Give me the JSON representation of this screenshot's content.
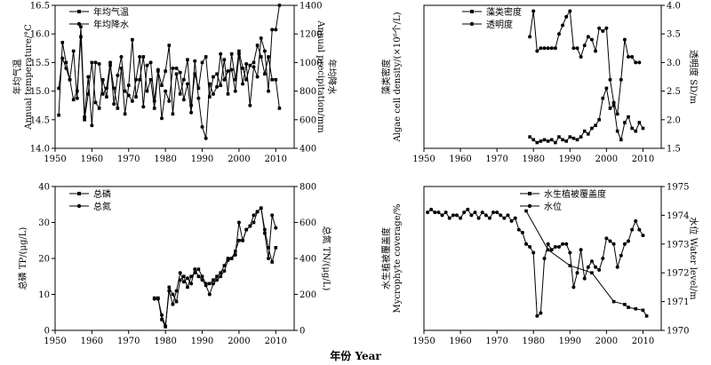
{
  "figure": {
    "xlabel": "年份 Year"
  },
  "chart_data": [
    {
      "type": "line",
      "xlim": [
        1950,
        2015
      ],
      "xticks": [
        1950,
        1960,
        1970,
        1980,
        1990,
        2000,
        2010
      ],
      "ylabel_left": "年均气温\nAnnual temperature/°C",
      "ylabel_right": "年均降水\nAnnual precipitation/mm",
      "ylim_left": [
        14.0,
        16.5
      ],
      "yticks_left": [
        "14.0",
        "14.5",
        "15.0",
        "15.5",
        "16.0",
        "16.5"
      ],
      "ylim_right": [
        400,
        1400
      ],
      "yticks_right": [
        "400",
        "600",
        "800",
        "1000",
        "1200",
        "1400"
      ],
      "legend_position": "top-left",
      "series": [
        {
          "name": "年均气温",
          "axis": "left",
          "marker": "square",
          "x": [
            1951,
            1952,
            1953,
            1954,
            1955,
            1956,
            1957,
            1958,
            1959,
            1960,
            1961,
            1962,
            1963,
            1964,
            1965,
            1966,
            1967,
            1968,
            1969,
            1970,
            1971,
            1972,
            1973,
            1974,
            1975,
            1976,
            1977,
            1978,
            1979,
            1980,
            1981,
            1982,
            1983,
            1984,
            1985,
            1986,
            1987,
            1988,
            1989,
            1990,
            1991,
            1992,
            1993,
            1994,
            1995,
            1996,
            1997,
            1998,
            1999,
            2000,
            2001,
            2002,
            2003,
            2004,
            2005,
            2006,
            2007,
            2008,
            2009,
            2010,
            2011
          ],
          "values": [
            14.58,
            15.85,
            15.5,
            15.2,
            14.85,
            15.0,
            15.95,
            14.5,
            14.95,
            15.5,
            14.8,
            14.7,
            15.2,
            14.9,
            15.45,
            15.05,
            14.7,
            15.4,
            14.6,
            15.1,
            15.9,
            14.9,
            15.2,
            15.6,
            15.0,
            15.2,
            14.7,
            15.35,
            15.1,
            15.35,
            15.8,
            14.6,
            15.3,
            14.95,
            15.2,
            15.55,
            14.75,
            15.3,
            15.05,
            15.5,
            15.6,
            14.9,
            15.25,
            15.3,
            15.1,
            15.55,
            14.95,
            15.65,
            15.2,
            15.7,
            15.4,
            15.2,
            15.45,
            15.5,
            15.8,
            15.6,
            15.3,
            15.6,
            15.2,
            15.2,
            14.7
          ]
        },
        {
          "name": "年均降水",
          "axis": "right",
          "marker": "circle",
          "x": [
            1951,
            1952,
            1953,
            1954,
            1955,
            1956,
            1957,
            1958,
            1959,
            1960,
            1961,
            1962,
            1963,
            1964,
            1965,
            1966,
            1967,
            1968,
            1969,
            1970,
            1971,
            1972,
            1973,
            1974,
            1975,
            1976,
            1977,
            1978,
            1979,
            1980,
            1981,
            1982,
            1983,
            1984,
            1985,
            1986,
            1987,
            1988,
            1989,
            1990,
            1991,
            1992,
            1993,
            1994,
            1995,
            1996,
            1997,
            1998,
            1999,
            2000,
            2001,
            2002,
            2003,
            2004,
            2005,
            2006,
            2007,
            2008,
            2009,
            2010,
            2011
          ],
          "values": [
            820,
            1030,
            960,
            880,
            1080,
            750,
            1250,
            620,
            900,
            560,
            1000,
            990,
            780,
            820,
            1000,
            710,
            910,
            1040,
            800,
            770,
            730,
            880,
            1040,
            690,
            980,
            1000,
            730,
            950,
            610,
            800,
            730,
            960,
            960,
            930,
            740,
            850,
            650,
            1010,
            750,
            550,
            470,
            850,
            780,
            830,
            1060,
            880,
            940,
            950,
            800,
            1060,
            850,
            990,
            700,
            970,
            900,
            1170,
            1080,
            800,
            1230,
            1230,
            1400
          ]
        }
      ]
    },
    {
      "type": "line",
      "xlim": [
        1950,
        2015
      ],
      "xticks": [
        1950,
        1960,
        1970,
        1980,
        1990,
        2000,
        2010
      ],
      "ylabel_left": "藻类密度\nAlgae cell density/(×10⁶个/L)",
      "ylabel_right": "透明度 SD/m",
      "ylim_left": [
        0,
        100
      ],
      "yticks_left": [],
      "ylim_right": [
        1.5,
        4.0
      ],
      "yticks_right": [
        "1.5",
        "2.0",
        "2.5",
        "3.0",
        "3.5",
        "4.0"
      ],
      "legend_position": "top-center",
      "series": [
        {
          "name": "藻类密度",
          "axis": "left",
          "marker": "square",
          "x": [
            1979,
            1980,
            1981,
            1982,
            1983,
            1984,
            1985,
            1986,
            1987,
            1988,
            1989,
            1990,
            1991,
            1992,
            1993,
            1994,
            1995,
            1996,
            1997,
            1998,
            1999,
            2000,
            2001,
            2002,
            2003,
            2004,
            2005,
            2006,
            2007,
            2008,
            2009,
            2010
          ],
          "values": [
            8,
            6,
            4,
            5,
            6,
            5,
            6,
            4,
            8,
            6,
            5,
            8,
            7,
            6,
            8,
            12,
            10,
            14,
            16,
            20,
            35,
            42,
            28,
            30,
            12,
            6,
            18,
            22,
            14,
            12,
            18,
            14
          ]
        },
        {
          "name": "透明度",
          "axis": "right",
          "marker": "circle",
          "x": [
            1979,
            1980,
            1981,
            1982,
            1983,
            1984,
            1985,
            1986,
            1987,
            1988,
            1989,
            1990,
            1991,
            1992,
            1993,
            1994,
            1995,
            1996,
            1997,
            1998,
            1999,
            2000,
            2001,
            2002,
            2003,
            2004,
            2005,
            2006,
            2007,
            2008,
            2009
          ],
          "values": [
            3.45,
            3.9,
            3.2,
            3.25,
            3.25,
            3.25,
            3.25,
            3.25,
            3.5,
            3.65,
            3.8,
            3.9,
            3.25,
            3.25,
            3.1,
            3.3,
            3.45,
            3.4,
            3.2,
            3.6,
            3.55,
            3.6,
            2.7,
            2.3,
            2.1,
            2.7,
            3.4,
            3.1,
            3.1,
            3.0,
            3.0
          ]
        }
      ]
    },
    {
      "type": "line",
      "xlim": [
        1950,
        2015
      ],
      "xticks": [
        1950,
        1960,
        1970,
        1980,
        1990,
        2000,
        2010
      ],
      "ylabel_left": "总磷 TP/(μg/L)",
      "ylabel_right": "总氮 TN/(μg/L)",
      "ylim_left": [
        0,
        40
      ],
      "yticks_left": [
        "0",
        "10",
        "20",
        "30",
        "40"
      ],
      "ylim_right": [
        0,
        800
      ],
      "yticks_right": [
        "0",
        "200",
        "400",
        "600",
        "800"
      ],
      "legend_position": "top-left",
      "series": [
        {
          "name": "总磷",
          "axis": "left",
          "marker": "square",
          "x": [
            1977,
            1978,
            1979,
            1980,
            1981,
            1982,
            1983,
            1984,
            1985,
            1986,
            1987,
            1988,
            1989,
            1990,
            1991,
            1992,
            1993,
            1994,
            1995,
            1996,
            1997,
            1998,
            1999,
            2000,
            2001,
            2002,
            2003,
            2004,
            2005,
            2006,
            2007,
            2008,
            2009,
            2010
          ],
          "values": [
            9,
            9,
            3,
            1,
            12,
            10,
            8,
            14,
            15,
            12,
            15,
            16,
            17,
            15,
            13,
            13,
            14,
            15,
            16,
            18,
            20,
            20,
            22,
            25,
            25,
            28,
            29,
            30,
            33,
            34,
            28,
            23,
            19,
            23
          ]
        },
        {
          "name": "总氮",
          "axis": "right",
          "marker": "circle",
          "x": [
            1977,
            1978,
            1979,
            1980,
            1981,
            1982,
            1983,
            1984,
            1985,
            1986,
            1987,
            1988,
            1989,
            1990,
            1991,
            1992,
            1993,
            1994,
            1995,
            1996,
            1997,
            1998,
            1999,
            2000,
            2001,
            2002,
            2003,
            2004,
            2005,
            2006,
            2007,
            2008,
            2009,
            2010
          ],
          "values": [
            175,
            175,
            85,
            25,
            220,
            145,
            220,
            320,
            270,
            290,
            260,
            340,
            300,
            280,
            250,
            200,
            260,
            280,
            300,
            330,
            390,
            400,
            420,
            600,
            500,
            560,
            580,
            640,
            660,
            680,
            540,
            400,
            640,
            570
          ]
        }
      ]
    },
    {
      "type": "line",
      "xlim": [
        1950,
        2015
      ],
      "xticks": [
        1950,
        1960,
        1970,
        1980,
        1990,
        2000,
        2010
      ],
      "ylabel_left": "水生植被覆盖度\nMycrophyte coverage/%",
      "ylabel_right": "水位 Water level/m",
      "ylim_left": [
        0,
        100
      ],
      "yticks_left": [],
      "ylim_right": [
        1970,
        1975
      ],
      "yticks_right": [
        "1970",
        "1971",
        "1972",
        "1973",
        "1974",
        "1975"
      ],
      "legend_position": "top-right",
      "series": [
        {
          "name": "水生植被覆盖度",
          "axis": "left",
          "marker": "square",
          "x": [
            1978,
            1984,
            1990,
            1996,
            2002,
            2005,
            2006,
            2008,
            2010,
            2011
          ],
          "values": [
            83,
            56,
            45,
            40,
            20,
            18,
            16,
            15,
            14,
            10
          ]
        },
        {
          "name": "水位",
          "axis": "right",
          "marker": "circle",
          "x": [
            1951,
            1952,
            1953,
            1954,
            1955,
            1956,
            1957,
            1958,
            1959,
            1960,
            1961,
            1962,
            1963,
            1964,
            1965,
            1966,
            1967,
            1968,
            1969,
            1970,
            1971,
            1972,
            1973,
            1974,
            1975,
            1976,
            1977,
            1978,
            1979,
            1980,
            1981,
            1982,
            1983,
            1984,
            1985,
            1986,
            1987,
            1988,
            1989,
            1990,
            1991,
            1992,
            1993,
            1994,
            1995,
            1996,
            1997,
            1998,
            1999,
            2000,
            2001,
            2002,
            2003,
            2004,
            2005,
            2006,
            2007,
            2008,
            2009,
            2010
          ],
          "values": [
            1974.1,
            1974.2,
            1974.1,
            1974.1,
            1974.0,
            1974.1,
            1973.9,
            1974.0,
            1974.0,
            1973.9,
            1974.1,
            1974.2,
            1974.0,
            1974.1,
            1973.9,
            1974.1,
            1974.0,
            1973.9,
            1974.1,
            1974.1,
            1974.0,
            1973.9,
            1974.0,
            1973.8,
            1973.9,
            1973.5,
            1973.4,
            1973.0,
            1972.9,
            1972.7,
            1970.5,
            1970.6,
            1972.5,
            1973.0,
            1972.8,
            1972.9,
            1972.9,
            1973.0,
            1973.0,
            1972.7,
            1971.5,
            1972.0,
            1972.8,
            1971.8,
            1972.2,
            1972.4,
            1972.2,
            1972.1,
            1972.5,
            1973.2,
            1973.1,
            1973.0,
            1972.2,
            1972.6,
            1973.0,
            1973.1,
            1973.5,
            1973.8,
            1973.5,
            1973.3
          ]
        }
      ]
    }
  ]
}
